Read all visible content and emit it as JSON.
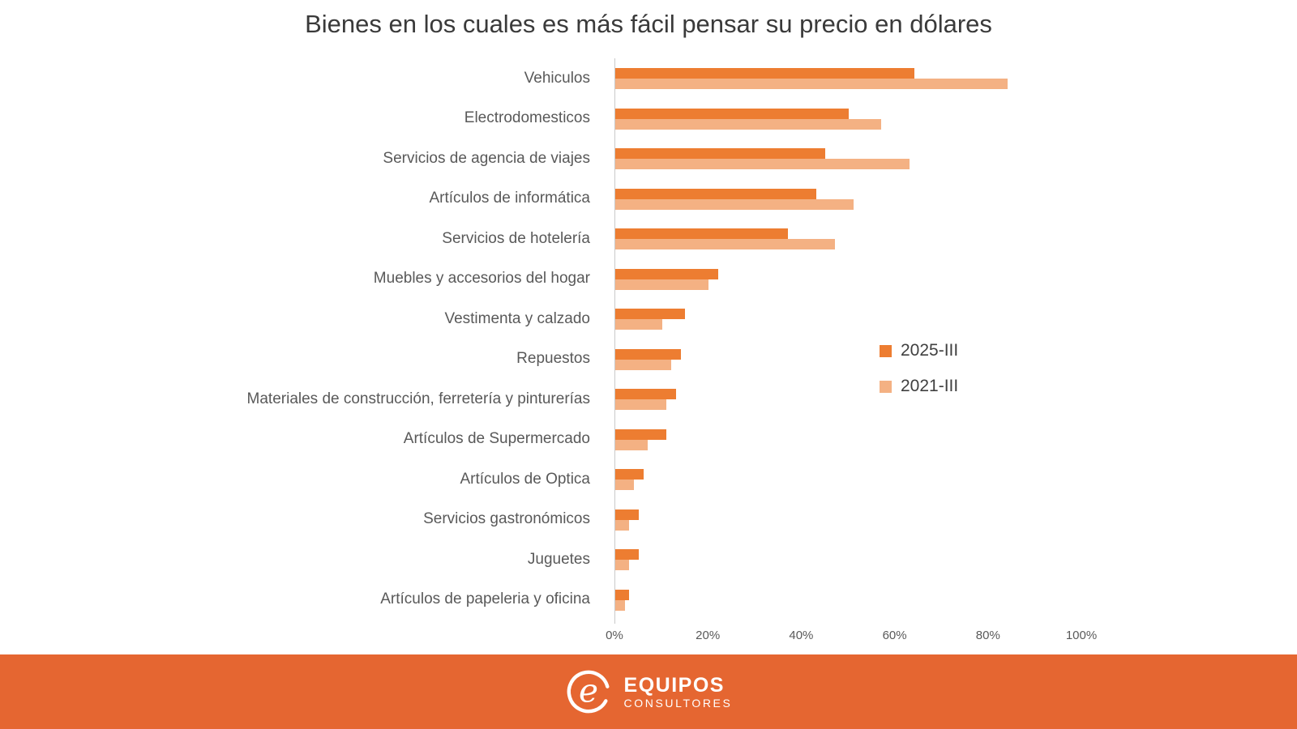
{
  "title": "Bienes en los cuales es más fácil pensar su precio en dólares",
  "chart_data": {
    "type": "bar",
    "orientation": "horizontal",
    "title": "Bienes en los cuales es más fácil pensar su precio en dólares",
    "categories": [
      "Vehiculos",
      "Electrodomesticos",
      "Servicios de agencia de viajes",
      "Artículos de informática",
      "Servicios de hotelería",
      "Muebles y accesorios del hogar",
      "Vestimenta y calzado",
      "Repuestos",
      "Materiales de construcción, ferretería y pinturerías",
      "Artículos de  Supermercado",
      "Artículos de Optica",
      "Servicios gastronómicos",
      "Juguetes",
      "Artículos de papeleria y oficina"
    ],
    "series": [
      {
        "name": "2025-III",
        "color": "#ED7D31",
        "values": [
          64,
          50,
          45,
          43,
          37,
          22,
          15,
          14,
          13,
          11,
          6,
          5,
          5,
          3
        ]
      },
      {
        "name": "2021-III",
        "color": "#F4B183",
        "values": [
          84,
          57,
          63,
          51,
          47,
          20,
          10,
          12,
          11,
          7,
          4,
          3,
          3,
          2
        ]
      }
    ],
    "unit": "%",
    "xlim": [
      0,
      100
    ],
    "x_ticks": [
      {
        "value": 0,
        "label": "0%"
      },
      {
        "value": 20,
        "label": "20%"
      },
      {
        "value": 40,
        "label": "40%"
      },
      {
        "value": 60,
        "label": "60%"
      },
      {
        "value": 80,
        "label": "80%"
      },
      {
        "value": 100,
        "label": "100%"
      }
    ],
    "grid": false,
    "legend_position": "middle-right"
  },
  "footer": {
    "brand_name": "EQUIPOS",
    "brand_subtitle": "CONSULTORES",
    "logo_icon": "e-swirl-icon",
    "background_color": "#E56631"
  },
  "colors": {
    "series_2025": "#ED7D31",
    "series_2021": "#F4B183",
    "axis_text": "#595959",
    "title_text": "#3A3A3A",
    "axis_line": "#C9C9C9",
    "footer_background": "#E56631"
  }
}
